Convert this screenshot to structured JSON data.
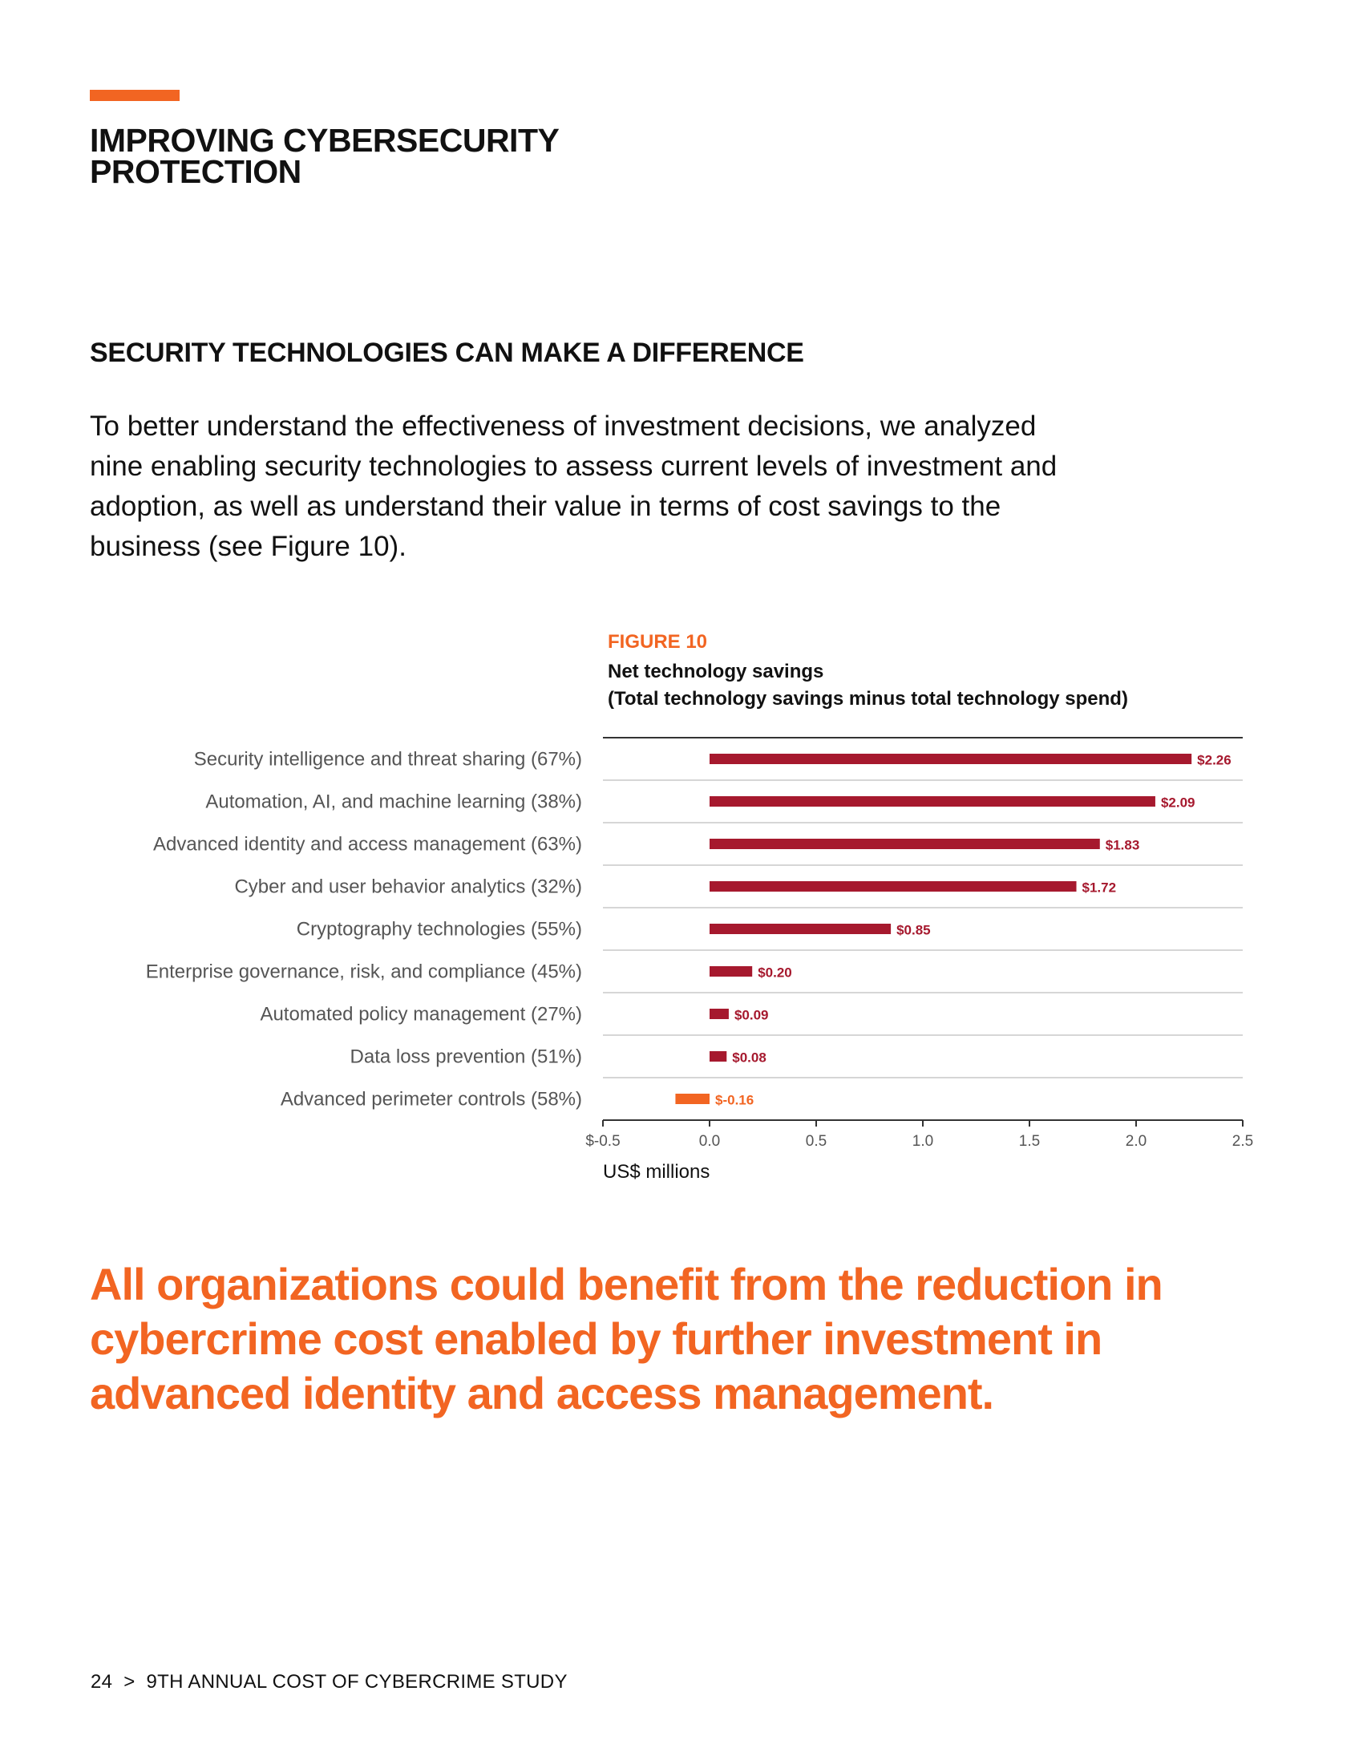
{
  "page": {
    "section_title": "IMPROVING CYBERSECURITY PROTECTION",
    "subheading": "SECURITY TECHNOLOGIES CAN MAKE A DIFFERENCE",
    "intro": "To better understand the effectiveness of investment decisions, we analyzed nine enabling security technologies to assess current levels of investment and adoption, as well as understand their value in terms of cost savings to the business (see Figure 10).",
    "pull_quote": "All organizations could benefit from the reduction in cybercrime cost enabled by further investment in advanced identity and access management.",
    "footer": {
      "page_number": "24",
      "separator": ">",
      "publication": "9TH ANNUAL COST OF CYBERCRIME STUDY"
    }
  },
  "figure": {
    "label": "FIGURE 10",
    "title_line1": "Net technology savings",
    "title_line2": "(Total technology savings minus total technology spend)"
  },
  "colors": {
    "accent": "#f26522",
    "bar_positive": "#a6192e",
    "bar_negative": "#f26522",
    "grid": "#c8c8c8",
    "label_gray": "#555555"
  },
  "chart_data": {
    "type": "bar",
    "orientation": "horizontal",
    "categories": [
      "Security intelligence and threat sharing (67%)",
      "Automation, AI, and machine learning (38%)",
      "Advanced identity and access management (63%)",
      "Cyber and user behavior analytics (32%)",
      "Cryptography technologies (55%)",
      "Enterprise governance, risk, and compliance (45%)",
      "Automated policy management (27%)",
      "Data loss prevention (51%)",
      "Advanced perimeter controls (58%)"
    ],
    "values": [
      2.26,
      2.09,
      1.83,
      1.72,
      0.85,
      0.2,
      0.09,
      0.08,
      -0.16
    ],
    "value_labels": [
      "$2.26",
      "$2.09",
      "$1.83",
      "$1.72",
      "$0.85",
      "$0.20",
      "$0.09",
      "$0.08",
      "$-0.16"
    ],
    "xlim": [
      -0.5,
      2.5
    ],
    "xticks": [
      -0.5,
      0.0,
      0.5,
      1.0,
      1.5,
      2.0,
      2.5
    ],
    "xtick_labels": [
      "$-0.5",
      "0.0",
      "0.5",
      "1.0",
      "1.5",
      "2.0",
      "2.5"
    ],
    "xlabel": "US$ millions",
    "ylabel": "",
    "grid": true
  }
}
